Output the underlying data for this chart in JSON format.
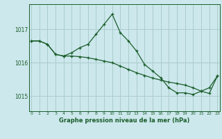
{
  "title": "Graphe pression niveau de la mer (hPa)",
  "background_color": "#cce8ec",
  "grid_color": "#aacccc",
  "line_color": "#1a5c2a",
  "series1": {
    "x": [
      0,
      1,
      2,
      3,
      4,
      5,
      6,
      7,
      8,
      9,
      10,
      11,
      12,
      13,
      14,
      15,
      16,
      17,
      18,
      19,
      20,
      21,
      22,
      23
    ],
    "y": [
      1016.65,
      1016.65,
      1016.55,
      1016.25,
      1016.2,
      1016.3,
      1016.45,
      1016.55,
      1016.85,
      1017.15,
      1017.45,
      1016.9,
      1016.65,
      1016.35,
      1015.95,
      1015.75,
      1015.55,
      1015.25,
      1015.1,
      1015.1,
      1015.05,
      1015.15,
      1015.25,
      1015.6
    ]
  },
  "series2": {
    "x": [
      0,
      1,
      2,
      3,
      4,
      5,
      6,
      7,
      8,
      9,
      10,
      11,
      12,
      13,
      14,
      15,
      16,
      17,
      18,
      19,
      20,
      21,
      22,
      23
    ],
    "y": [
      1016.65,
      1016.65,
      1016.55,
      1016.25,
      1016.2,
      1016.2,
      1016.18,
      1016.15,
      1016.1,
      1016.05,
      1016.0,
      1015.9,
      1015.8,
      1015.7,
      1015.62,
      1015.54,
      1015.48,
      1015.42,
      1015.38,
      1015.33,
      1015.25,
      1015.15,
      1015.08,
      1015.6
    ]
  },
  "yticks": [
    1015,
    1016,
    1017
  ],
  "xticks": [
    0,
    1,
    2,
    3,
    4,
    5,
    6,
    7,
    8,
    9,
    10,
    11,
    12,
    13,
    14,
    15,
    16,
    17,
    18,
    19,
    20,
    21,
    22,
    23
  ],
  "ylim": [
    1014.55,
    1017.75
  ],
  "xlim": [
    -0.3,
    23.3
  ]
}
